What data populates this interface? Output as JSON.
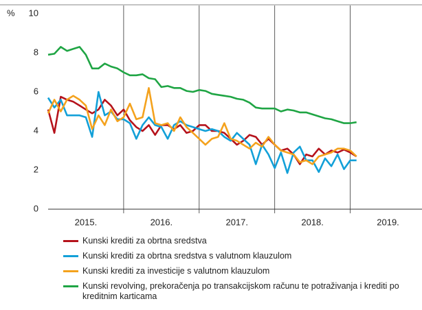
{
  "chart_data": {
    "type": "line",
    "y_unit": "%",
    "x": [
      2015,
      2015.083,
      2015.167,
      2015.25,
      2015.333,
      2015.417,
      2015.5,
      2015.583,
      2015.667,
      2015.75,
      2015.833,
      2015.917,
      2016,
      2016.083,
      2016.167,
      2016.25,
      2016.333,
      2016.417,
      2016.5,
      2016.583,
      2016.667,
      2016.75,
      2016.833,
      2016.917,
      2017,
      2017.083,
      2017.167,
      2017.25,
      2017.333,
      2017.417,
      2017.5,
      2017.583,
      2017.667,
      2017.75,
      2017.833,
      2017.917,
      2018,
      2018.083,
      2018.167,
      2018.25,
      2018.333,
      2018.417,
      2018.5,
      2018.583,
      2018.667,
      2018.75,
      2018.833,
      2018.917,
      2019,
      2019.083
    ],
    "series": [
      {
        "name": "Kunski krediti za obrtna sredstva",
        "color": "#b5121b",
        "values": [
          5.1,
          3.9,
          5.75,
          5.6,
          5.5,
          5.3,
          5.1,
          4.9,
          5.1,
          5.6,
          5.3,
          4.8,
          5.1,
          4.55,
          4.2,
          4.0,
          4.3,
          3.8,
          4.3,
          4.3,
          4.1,
          4.3,
          3.9,
          4.0,
          4.3,
          4.3,
          4.0,
          4.0,
          3.9,
          3.6,
          3.3,
          3.5,
          3.8,
          3.7,
          3.3,
          3.6,
          3.3,
          3.0,
          3.1,
          2.8,
          2.3,
          2.8,
          2.7,
          3.1,
          2.8,
          3.0,
          2.9,
          3.05,
          2.9,
          2.7
        ]
      },
      {
        "name": "Kunski krediti za obrtna sredstva s valutnom klauzulom",
        "color": "#12a0d8",
        "values": [
          5.7,
          5.2,
          5.6,
          4.8,
          4.8,
          4.8,
          4.7,
          3.7,
          6.0,
          4.8,
          5.0,
          4.6,
          4.6,
          4.4,
          3.6,
          4.3,
          4.7,
          4.3,
          4.2,
          3.6,
          4.3,
          4.5,
          4.3,
          4.2,
          4.1,
          4.0,
          4.1,
          4.0,
          3.7,
          3.5,
          3.9,
          3.6,
          3.3,
          2.3,
          3.3,
          2.8,
          2.1,
          2.9,
          1.85,
          2.9,
          3.2,
          2.5,
          2.5,
          1.9,
          2.6,
          2.2,
          2.8,
          2.05,
          2.5,
          2.5
        ]
      },
      {
        "name": "Kunski krediti za investicije s valutnom klauzulom",
        "color": "#f4a21d",
        "values": [
          4.9,
          5.6,
          5.0,
          5.6,
          5.8,
          5.6,
          5.3,
          4.1,
          4.8,
          4.3,
          5.1,
          4.5,
          4.7,
          5.4,
          4.6,
          4.7,
          6.2,
          4.4,
          4.3,
          4.4,
          4.0,
          4.7,
          4.2,
          3.9,
          3.6,
          3.3,
          3.6,
          3.7,
          4.4,
          3.6,
          3.5,
          3.3,
          3.1,
          3.4,
          3.2,
          3.7,
          3.3,
          3.0,
          2.9,
          2.8,
          2.4,
          2.5,
          2.3,
          2.7,
          2.8,
          2.9,
          3.1,
          3.1,
          3.0,
          2.7
        ]
      },
      {
        "name": "Kunski revolving, prekoračenja po transakcijskom računu te potraživanja i krediti po kreditnim karticama",
        "color": "#1fa544",
        "values": [
          7.9,
          7.95,
          8.3,
          8.1,
          8.2,
          8.3,
          7.9,
          7.2,
          7.2,
          7.45,
          7.3,
          7.2,
          7.0,
          6.85,
          6.85,
          6.9,
          6.7,
          6.65,
          6.25,
          6.3,
          6.2,
          6.2,
          6.05,
          6.0,
          6.1,
          6.05,
          5.9,
          5.85,
          5.8,
          5.75,
          5.65,
          5.6,
          5.45,
          5.2,
          5.15,
          5.15,
          5.15,
          5.0,
          5.1,
          5.05,
          4.95,
          4.95,
          4.85,
          4.75,
          4.65,
          4.6,
          4.5,
          4.4,
          4.4,
          4.45
        ]
      }
    ],
    "xlim": [
      2015,
      2019.95
    ],
    "xticks": [
      {
        "value": 2015.5,
        "label": "2015."
      },
      {
        "value": 2016.5,
        "label": "2016."
      },
      {
        "value": 2017.5,
        "label": "2017."
      },
      {
        "value": 2018.5,
        "label": "2018."
      },
      {
        "value": 2019.5,
        "label": "2019."
      }
    ],
    "xgrid": [
      2016,
      2017,
      2018,
      2019
    ],
    "ylim": [
      0,
      10
    ],
    "yticks": [
      0,
      2,
      4,
      6,
      8,
      10
    ]
  }
}
